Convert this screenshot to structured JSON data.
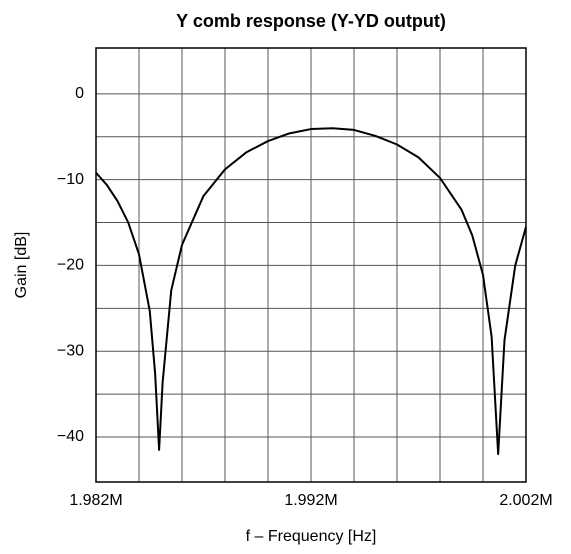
{
  "chart_data": {
    "type": "line",
    "title": "Y comb response (Y-YD output)",
    "xlabel": "f – Frequency [Hz]",
    "ylabel": "Gain [dB]",
    "x": [
      1982000,
      1982500,
      1983000,
      1983500,
      1984000,
      1984500,
      1984750,
      1984935,
      1985100,
      1985500,
      1986000,
      1987000,
      1988000,
      1989000,
      1990000,
      1991000,
      1992000,
      1993000,
      1994000,
      1995000,
      1996000,
      1997000,
      1998000,
      1999000,
      1999500,
      2000000,
      2000400,
      2000705,
      2001000,
      2001500,
      2002000
    ],
    "series": [
      {
        "name": "Y-YD output",
        "color": "#000000",
        "values": [
          -9.2,
          -10.6,
          -12.5,
          -15.0,
          -18.7,
          -25.3,
          -32.6,
          -41.5,
          -33.6,
          -22.9,
          -17.6,
          -11.9,
          -8.8,
          -6.8,
          -5.5,
          -4.6,
          -4.1,
          -4.0,
          -4.2,
          -4.9,
          -5.9,
          -7.4,
          -9.8,
          -13.5,
          -16.5,
          -21.1,
          -28.3,
          -42.0,
          -28.7,
          -20.0,
          -15.5
        ]
      }
    ],
    "xlim": [
      1982000,
      2002000
    ],
    "xticks": [
      {
        "value": 1982000,
        "label": "1.982M"
      },
      {
        "value": 1992000,
        "label": "1.992M"
      },
      {
        "value": 2002000,
        "label": "2.002M"
      }
    ],
    "xgrid": [
      1984000,
      1986000,
      1988000,
      1990000,
      1992000,
      1994000,
      1996000,
      1998000,
      2000000
    ],
    "ylim": [
      -45.25,
      5.35
    ],
    "yticks": [
      {
        "value": 0,
        "label": "0"
      },
      {
        "value": -10,
        "label": "−10"
      },
      {
        "value": -20,
        "label": "−20"
      },
      {
        "value": -30,
        "label": "−30"
      },
      {
        "value": -40,
        "label": "−40"
      }
    ],
    "ygrid": [
      0,
      -5,
      -10,
      -15,
      -20,
      -25,
      -30,
      -35,
      -40
    ],
    "grid": true
  }
}
